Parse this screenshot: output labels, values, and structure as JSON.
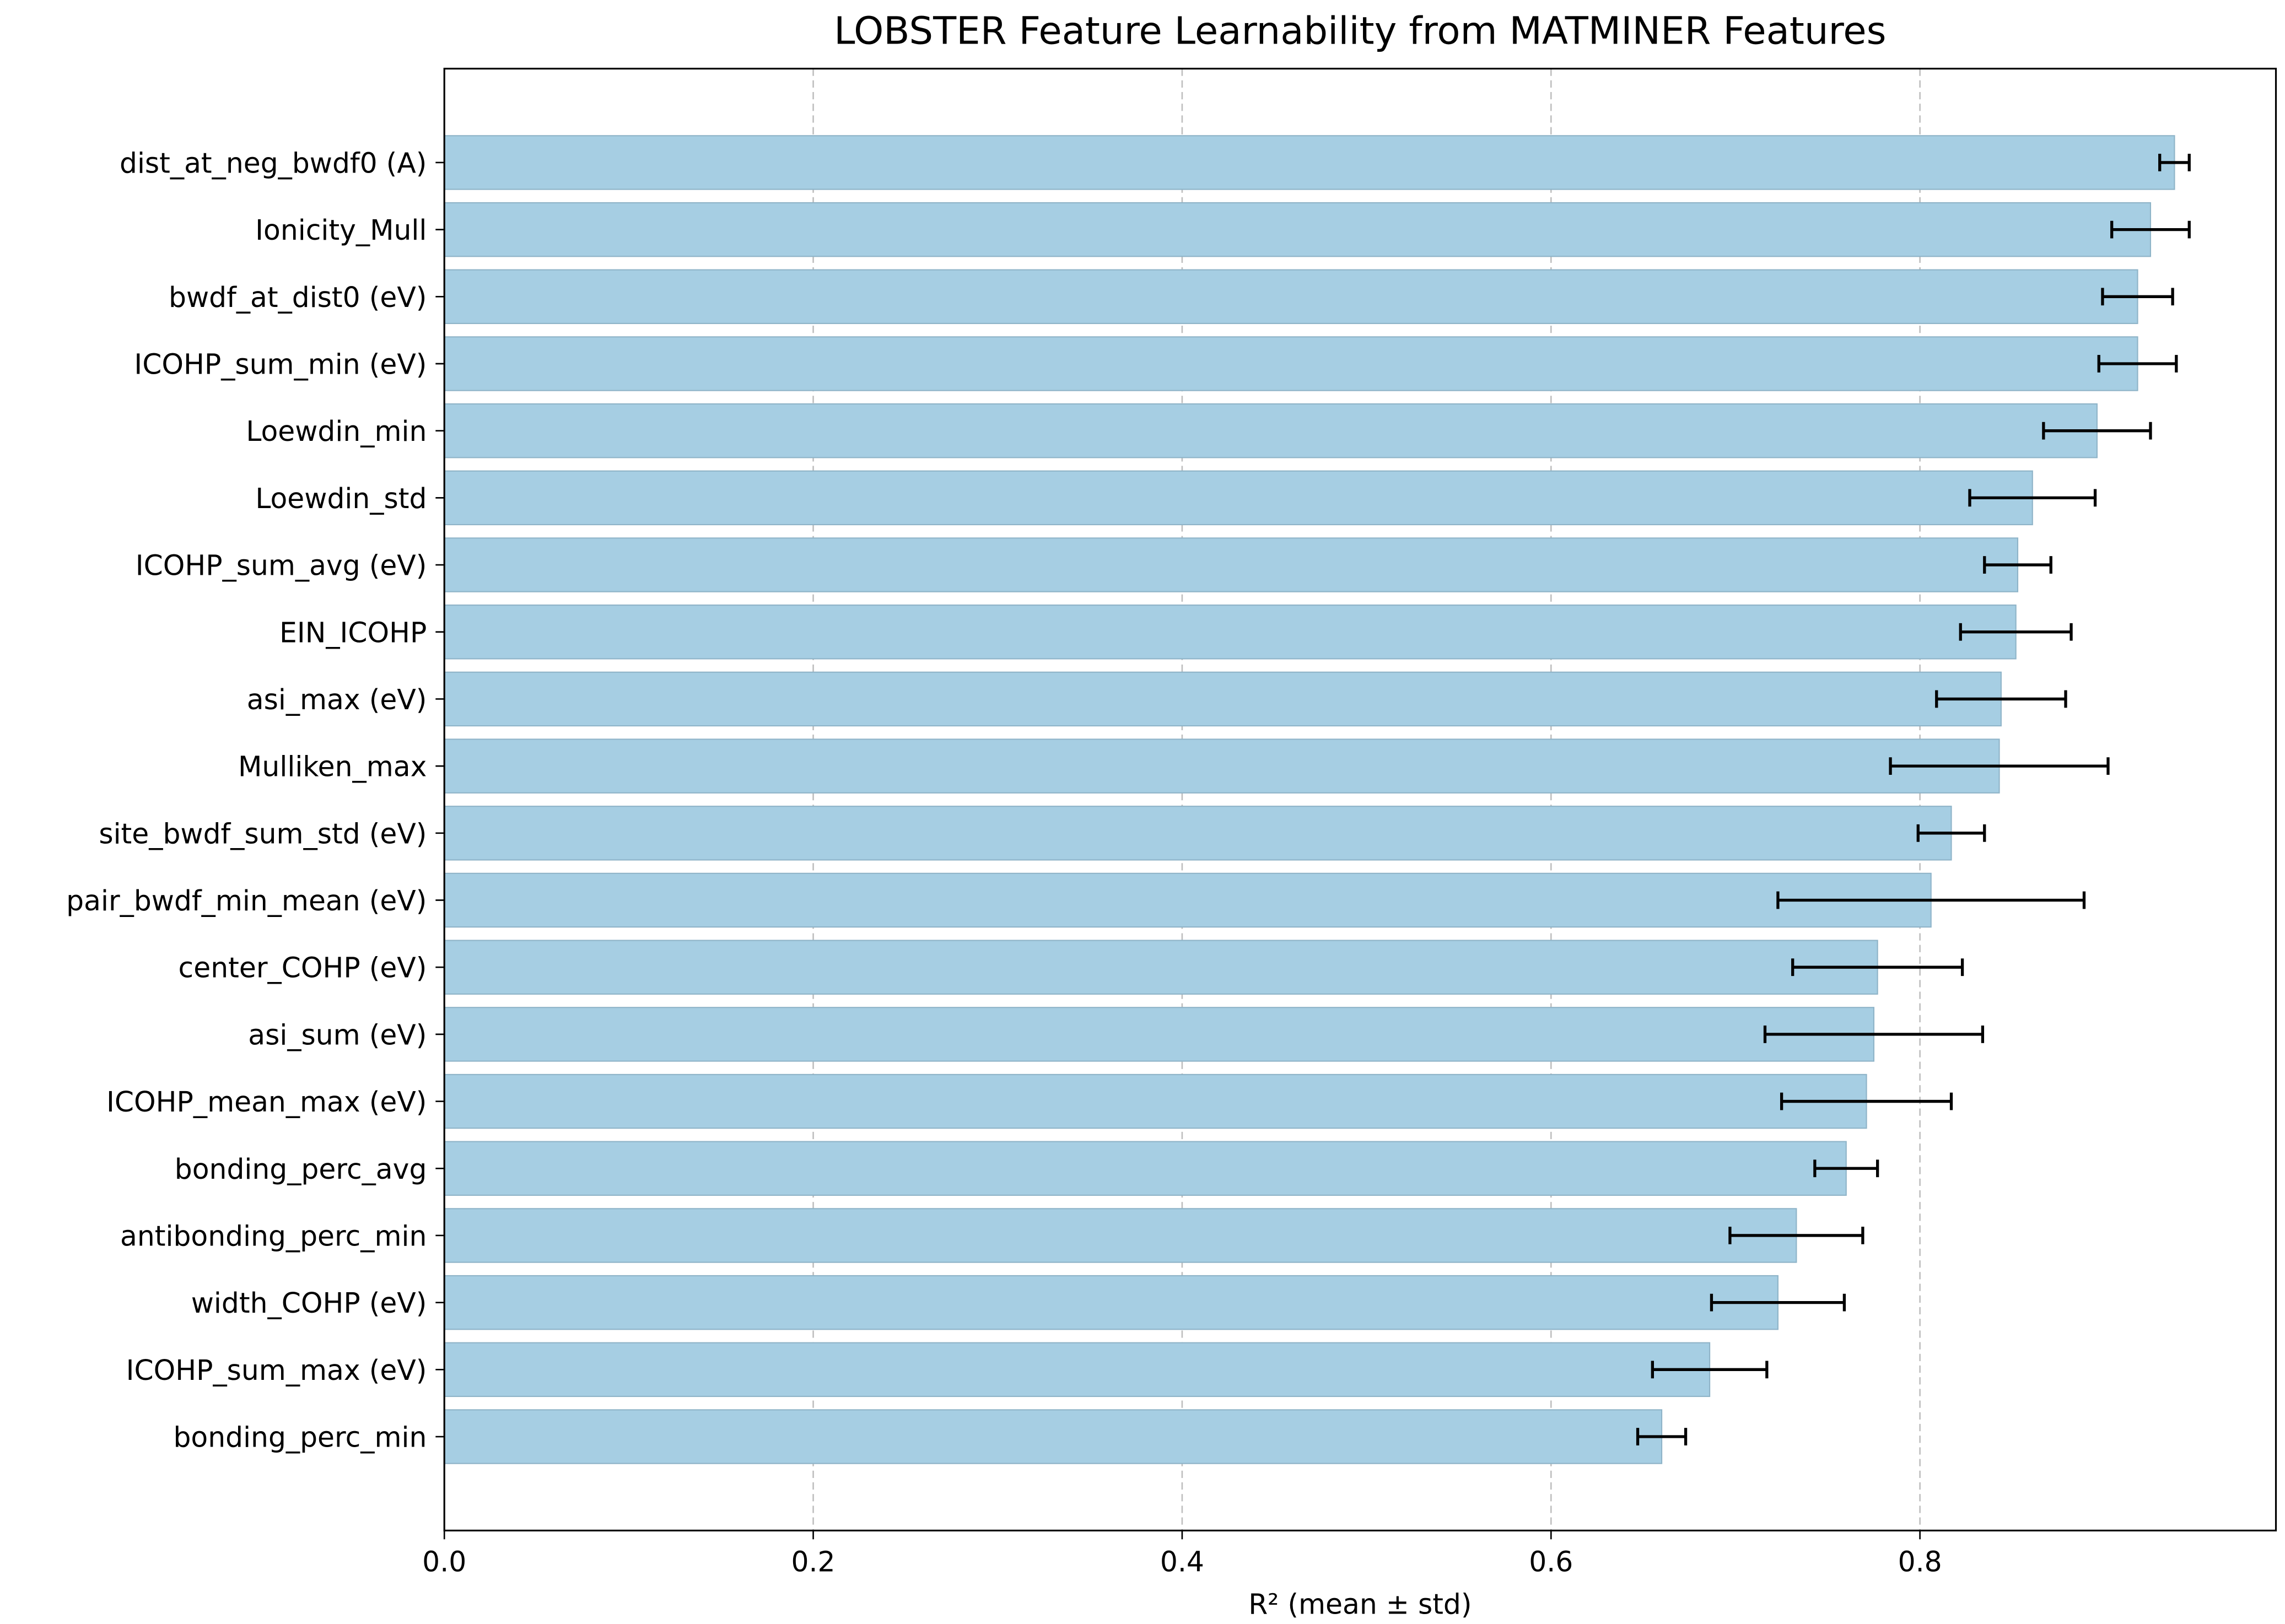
{
  "chart_data": {
    "type": "bar",
    "orientation": "horizontal",
    "title": "LOBSTER Feature Learnability from MATMINER Features",
    "xlabel": "R² (mean ± std)",
    "ylabel": "",
    "xlim": [
      0.0,
      0.993
    ],
    "xticks": [
      "0.0",
      "0.2",
      "0.4",
      "0.6",
      "0.8"
    ],
    "grid": "x-axis dashed",
    "bar_color": "#a6cee3",
    "error_bar_color": "#000000",
    "categories": [
      "dist_at_neg_bwdf0 (A)",
      "Ionicity_Mull",
      "bwdf_at_dist0 (eV)",
      "ICOHP_sum_min (eV)",
      "Loewdin_min",
      "Loewdin_std",
      "ICOHP_sum_avg (eV)",
      "EIN_ICOHP",
      "asi_max (eV)",
      "Mulliken_max",
      "site_bwdf_sum_std (eV)",
      "pair_bwdf_min_mean (eV)",
      "center_COHP (eV)",
      "asi_sum (eV)",
      "ICOHP_mean_max (eV)",
      "bonding_perc_avg",
      "antibonding_perc_min",
      "width_COHP (eV)",
      "ICOHP_sum_max (eV)",
      "bonding_perc_min"
    ],
    "values": [
      0.938,
      0.925,
      0.918,
      0.918,
      0.896,
      0.861,
      0.853,
      0.852,
      0.844,
      0.843,
      0.817,
      0.806,
      0.777,
      0.775,
      0.771,
      0.76,
      0.733,
      0.723,
      0.686,
      0.66
    ],
    "errors": [
      0.008,
      0.021,
      0.019,
      0.021,
      0.029,
      0.034,
      0.018,
      0.03,
      0.035,
      0.059,
      0.018,
      0.083,
      0.046,
      0.059,
      0.046,
      0.017,
      0.036,
      0.036,
      0.031,
      0.013
    ]
  }
}
